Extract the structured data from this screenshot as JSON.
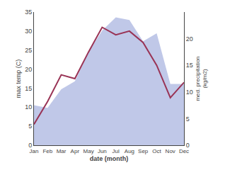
{
  "chart_data": {
    "type": "line",
    "xlabel": "date (month)",
    "ylabel": "max temp (C)",
    "y2label": "med. precipitation\n(kg/m2)",
    "categories": [
      "Jan",
      "Feb",
      "Mar",
      "Apr",
      "May",
      "Jun",
      "Jul",
      "Aug",
      "Sep",
      "Oct",
      "Nov",
      "Dec"
    ],
    "series": [
      {
        "type": "area",
        "color": "#c0c8e8",
        "axis": "y2",
        "values": [
          7.5,
          7.0,
          10.5,
          12.0,
          17.5,
          21.5,
          24.0,
          23.5,
          19.5,
          21.0,
          11.5,
          11.5
        ]
      },
      {
        "type": "line",
        "color": "#993355",
        "values": [
          5.5,
          11.5,
          18.5,
          17.5,
          24.5,
          31.0,
          29.0,
          30.0,
          27.0,
          21.0,
          12.5,
          16.5
        ]
      }
    ],
    "ylim": [
      0,
      35
    ],
    "yticks": [
      0,
      5,
      10,
      15,
      20,
      25,
      30,
      35
    ],
    "y2lim": [
      0,
      25
    ],
    "y2ticks": [
      0,
      5,
      10,
      15,
      20
    ],
    "grid": false
  }
}
